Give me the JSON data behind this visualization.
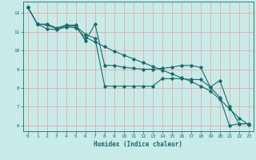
{
  "xlabel": "Humidex (Indice chaleur)",
  "bg_color": "#c8ebe8",
  "grid_color": "#e8a0a0",
  "line_color": "#1a6b6b",
  "xlim": [
    -0.5,
    23.5
  ],
  "ylim": [
    5.7,
    12.6
  ],
  "yticks": [
    6,
    7,
    8,
    9,
    10,
    11,
    12
  ],
  "xticks": [
    0,
    1,
    2,
    3,
    4,
    5,
    6,
    7,
    8,
    9,
    10,
    11,
    12,
    13,
    14,
    15,
    16,
    17,
    18,
    19,
    20,
    21,
    22,
    23
  ],
  "line1_x": [
    0,
    1,
    2,
    3,
    4,
    5,
    6,
    7,
    8,
    9,
    10,
    11,
    12,
    13,
    14,
    15,
    16,
    17,
    18,
    19,
    20,
    21,
    22,
    23
  ],
  "line1_y": [
    12.3,
    11.4,
    11.4,
    11.2,
    11.35,
    11.35,
    10.5,
    11.4,
    9.2,
    9.2,
    9.1,
    9.05,
    9.0,
    9.0,
    9.05,
    9.1,
    9.2,
    9.2,
    9.1,
    8.05,
    8.4,
    7.0,
    6.1,
    6.1
  ],
  "line2_x": [
    0,
    1,
    2,
    3,
    4,
    5,
    6,
    7,
    8,
    9,
    10,
    11,
    12,
    13,
    14,
    15,
    16,
    17,
    18,
    19,
    20,
    21,
    22,
    23
  ],
  "line2_y": [
    12.3,
    11.4,
    11.35,
    11.15,
    11.3,
    11.3,
    10.85,
    10.65,
    8.1,
    8.1,
    8.1,
    8.1,
    8.1,
    8.1,
    8.5,
    8.5,
    8.5,
    8.45,
    8.45,
    8.05,
    7.5,
    6.0,
    6.1,
    6.1
  ],
  "line3_x": [
    0,
    1,
    2,
    3,
    4,
    5,
    6,
    7,
    8,
    9,
    10,
    11,
    12,
    13,
    14,
    15,
    16,
    17,
    18,
    19,
    20,
    21,
    22,
    23
  ],
  "line3_y": [
    12.3,
    11.4,
    11.15,
    11.1,
    11.25,
    11.2,
    10.7,
    10.45,
    10.2,
    9.95,
    9.75,
    9.55,
    9.35,
    9.15,
    8.95,
    8.75,
    8.55,
    8.35,
    8.1,
    7.85,
    7.4,
    6.9,
    6.4,
    6.05
  ]
}
